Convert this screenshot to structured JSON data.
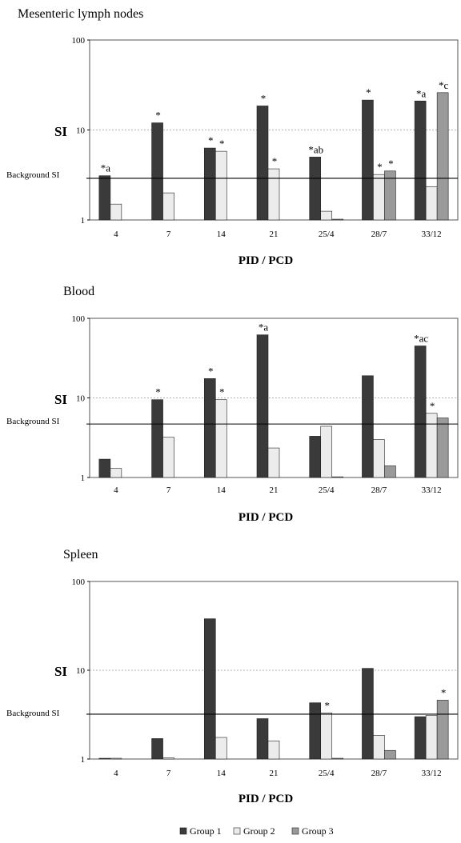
{
  "x_axis_label": "PID / PCD",
  "y_axis_label": "SI",
  "background_label": "Background SI",
  "legend": [
    {
      "name": "Group 1",
      "color": "#3a3a3a"
    },
    {
      "name": "Group 2",
      "color": "#ececec"
    },
    {
      "name": "Group 3",
      "color": "#9a9a9a"
    }
  ],
  "chart_data": [
    {
      "type": "bar",
      "title": "Mesenteric lymph nodes",
      "xlabel": "PID / PCD",
      "ylabel": "SI",
      "yscale": "log",
      "ylim": [
        1,
        100
      ],
      "yticks": [
        1,
        10,
        100
      ],
      "categories": [
        "4",
        "7",
        "14",
        "21",
        "25/4",
        "28/7",
        "33/12"
      ],
      "background_si": 2.9,
      "series": [
        {
          "name": "Group 1",
          "values": [
            3.1,
            12,
            6.3,
            18.5,
            5,
            21.5,
            21
          ]
        },
        {
          "name": "Group 2",
          "values": [
            1.5,
            2,
            5.8,
            3.7,
            1.25,
            3.2,
            2.35
          ]
        },
        {
          "name": "Group 3",
          "values": [
            null,
            null,
            null,
            null,
            1.02,
            3.5,
            26
          ]
        }
      ],
      "annotations": [
        {
          "category": "4",
          "series": "Group 1",
          "text": "*a"
        },
        {
          "category": "7",
          "series": "Group 1",
          "text": "*"
        },
        {
          "category": "14",
          "series": "Group 1",
          "text": "*"
        },
        {
          "category": "14",
          "series": "Group 2",
          "text": "*"
        },
        {
          "category": "21",
          "series": "Group 1",
          "text": "*"
        },
        {
          "category": "21",
          "series": "Group 2",
          "text": "*"
        },
        {
          "category": "25/4",
          "series": "Group 1",
          "text": "*ab"
        },
        {
          "category": "28/7",
          "series": "Group 1",
          "text": "*"
        },
        {
          "category": "28/7",
          "series": "Group 2",
          "text": "*"
        },
        {
          "category": "28/7",
          "series": "Group 3",
          "text": "*"
        },
        {
          "category": "33/12",
          "series": "Group 1",
          "text": "*a"
        },
        {
          "category": "33/12",
          "series": "Group 3",
          "text": "*c"
        }
      ]
    },
    {
      "type": "bar",
      "title": "Blood",
      "xlabel": "PID / PCD",
      "ylabel": "SI",
      "yscale": "log",
      "ylim": [
        1,
        100
      ],
      "yticks": [
        1,
        10,
        100
      ],
      "categories": [
        "4",
        "7",
        "14",
        "21",
        "25/4",
        "28/7",
        "33/12"
      ],
      "background_si": 4.7,
      "series": [
        {
          "name": "Group 1",
          "values": [
            1.7,
            9.5,
            17.5,
            62,
            3.3,
            19,
            45
          ]
        },
        {
          "name": "Group 2",
          "values": [
            1.3,
            3.2,
            9.5,
            2.35,
            4.4,
            3,
            6.4
          ]
        },
        {
          "name": "Group 3",
          "values": [
            null,
            null,
            null,
            null,
            1.02,
            1.4,
            5.6
          ]
        }
      ],
      "annotations": [
        {
          "category": "7",
          "series": "Group 1",
          "text": "*"
        },
        {
          "category": "14",
          "series": "Group 1",
          "text": "*"
        },
        {
          "category": "14",
          "series": "Group 2",
          "text": "*"
        },
        {
          "category": "21",
          "series": "Group 1",
          "text": "*a"
        },
        {
          "category": "33/12",
          "series": "Group 1",
          "text": "*ac"
        },
        {
          "category": "33/12",
          "series": "Group 2",
          "text": "*"
        }
      ]
    },
    {
      "type": "bar",
      "title": "Spleen",
      "xlabel": "PID / PCD",
      "ylabel": "SI",
      "yscale": "log",
      "ylim": [
        1,
        100
      ],
      "yticks": [
        1,
        10,
        100
      ],
      "categories": [
        "4",
        "7",
        "14",
        "21",
        "25/4",
        "28/7",
        "33/12"
      ],
      "background_si": 3.2,
      "series": [
        {
          "name": "Group 1",
          "values": [
            1.02,
            1.7,
            38,
            2.85,
            4.3,
            10.5,
            3
          ]
        },
        {
          "name": "Group 2",
          "values": [
            1.02,
            1.03,
            1.75,
            1.6,
            3.3,
            1.85,
            3.1
          ]
        },
        {
          "name": "Group 3",
          "values": [
            null,
            null,
            null,
            null,
            1.02,
            1.25,
            4.6
          ]
        }
      ],
      "annotations": [
        {
          "category": "25/4",
          "series": "Group 2",
          "text": "*"
        },
        {
          "category": "33/12",
          "series": "Group 3",
          "text": "*"
        }
      ]
    }
  ]
}
